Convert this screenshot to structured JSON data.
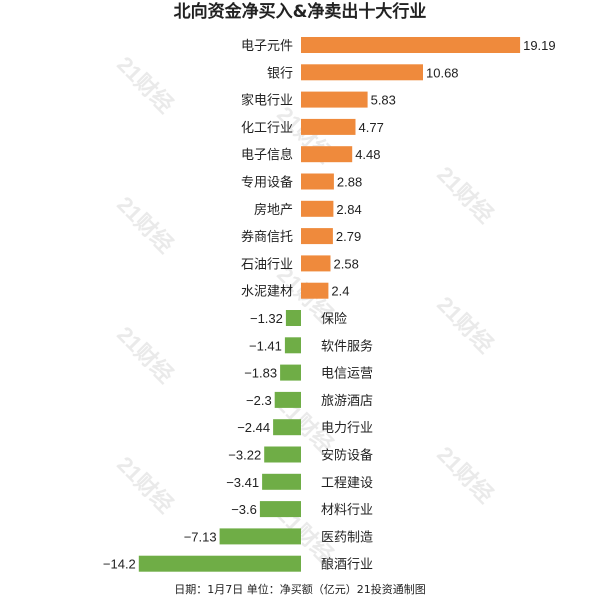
{
  "chart_data": {
    "type": "bar",
    "orientation": "horizontal",
    "title": "北向资金净买入&净卖出十大行业",
    "categories": [
      "电子元件",
      "银行",
      "家电行业",
      "化工行业",
      "电子信息",
      "专用设备",
      "房地产",
      "券商信托",
      "石油行业",
      "水泥建材",
      "保险",
      "软件服务",
      "电信运营",
      "旅游酒店",
      "电力行业",
      "安防设备",
      "工程建设",
      "材料行业",
      "医药制造",
      "酿酒行业"
    ],
    "values": [
      19.19,
      10.68,
      5.83,
      4.77,
      4.48,
      2.88,
      2.84,
      2.79,
      2.58,
      2.4,
      -1.32,
      -1.41,
      -1.83,
      -2.3,
      -2.44,
      -3.22,
      -3.41,
      -3.6,
      -7.13,
      -14.2
    ],
    "value_labels": [
      "19.19",
      "10.68",
      "5.83",
      "4.77",
      "4.48",
      "2.88",
      "2.84",
      "2.79",
      "2.58",
      "2.4",
      "−1.32",
      "−1.41",
      "−1.83",
      "−2.3",
      "−2.44",
      "−3.22",
      "−3.41",
      "−3.6",
      "−7.13",
      "−14.2"
    ],
    "positive_color": "#ef8a3c",
    "negative_color": "#6fad46",
    "xlim": [
      -14.2,
      19.19
    ],
    "grid": false,
    "legend": "none",
    "footnote": "日期：1月7日 单位：净买额（亿元）21投资通制图",
    "watermark": "21财经"
  }
}
